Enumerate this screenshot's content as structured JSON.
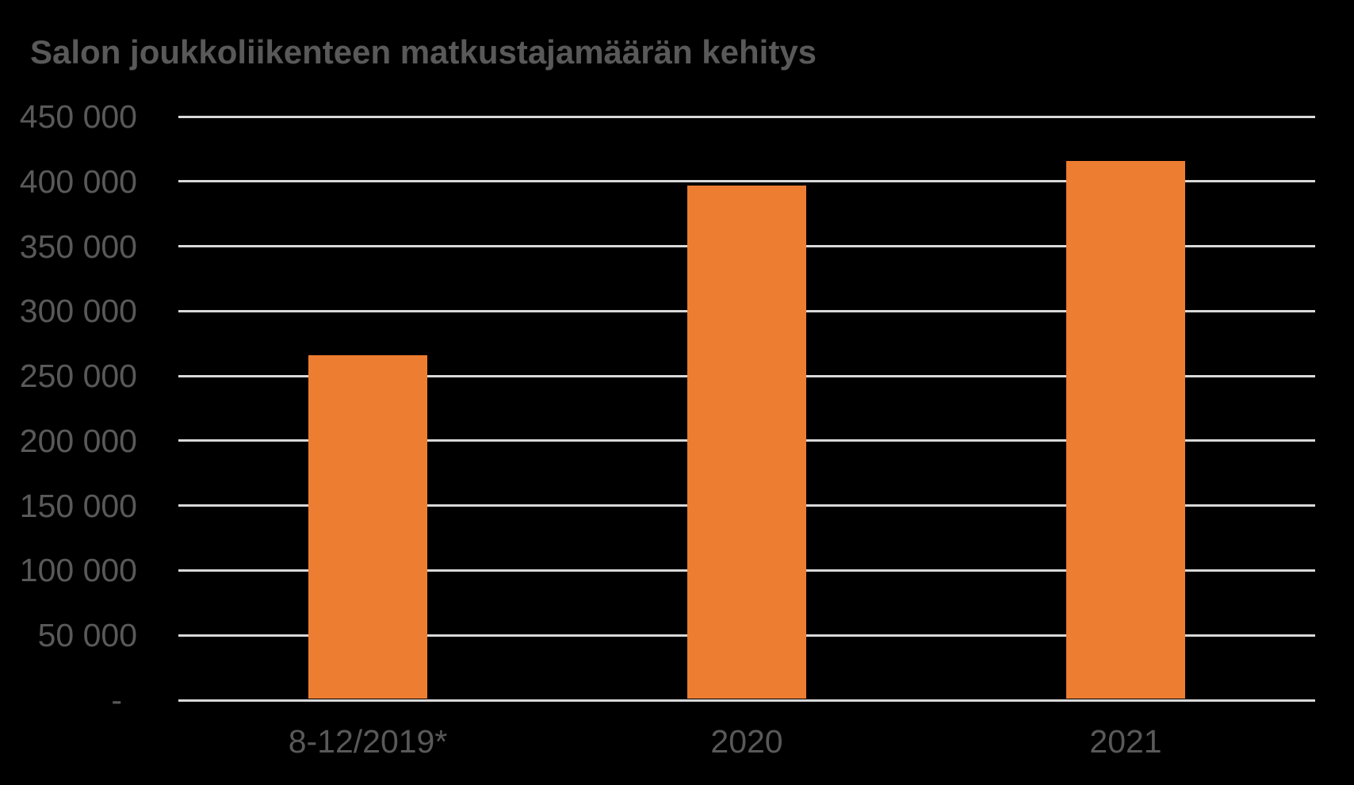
{
  "page": {
    "background_color": "#000000"
  },
  "chart_data": {
    "type": "bar",
    "title": "Salon joukkoliikenteen matkustajamäärän kehitys",
    "categories": [
      "8-12/2019*",
      "2020",
      "2021"
    ],
    "values": [
      266000,
      397000,
      416000
    ],
    "xlabel": "",
    "ylabel": "",
    "ylim": [
      0,
      450000
    ],
    "ytick_step": 50000,
    "ytick_labels": [
      "450 000",
      "400 000",
      "350 000",
      "300 000",
      "250 000",
      "200 000",
      "150 000",
      "100 000",
      "50 000",
      "-"
    ],
    "zero_tick_label": "-",
    "grid": true,
    "legend": "none",
    "bar_color": "#ED7D31",
    "gridline_color": "#D9D9D9",
    "text_color": "#595959"
  }
}
